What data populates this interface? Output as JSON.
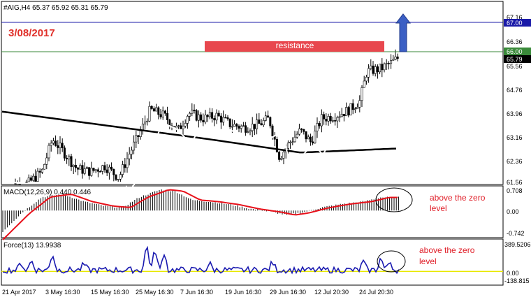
{
  "header": {
    "symbol_info": "#AIG,H4  65.37 65.92 65.31 65.79",
    "date": "3/08/2017"
  },
  "main_chart": {
    "annotation": "resistance",
    "price_axis": [
      "67.16",
      "66.36",
      "65.56",
      "64.76",
      "63.96",
      "63.16",
      "62.36",
      "61.56"
    ],
    "level_labels": {
      "blue": "67.00",
      "green": "66.00",
      "current": "65.79"
    },
    "resistance_price": 66.0,
    "target_price": 67.0,
    "current_price": 65.79
  },
  "macd_panel": {
    "label": "MACD(12,26,9) 0.440 0.446",
    "axis": [
      "0.708",
      "0.00",
      "-0.742"
    ],
    "note": "above the zero\nlevel"
  },
  "force_panel": {
    "label": "Force(13) 13.9938",
    "axis": [
      "389.5206",
      "0.00",
      "-138.815"
    ],
    "note": "above the zero\nlevel"
  },
  "time_axis": [
    "21 Apr 2017",
    "3 May 16:30",
    "15 May 16:30",
    "25 May 16:30",
    "7 Jun 16:30",
    "19 Jun 16:30",
    "29 Jun 16:30",
    "12 Jul 20:30",
    "24 Jul 20:30"
  ],
  "colors": {
    "resistance_box": "#e8474e",
    "target_arrow": "#3b5fc4",
    "target_line": "#1a1aa8",
    "resistance_line": "#3a8a3a",
    "date_text": "#e0302a",
    "note_text": "#e0202a",
    "signal_line": "#e8101a",
    "force_line": "#1a1ab0",
    "zero_line": "#e8e800",
    "candles": "#000000"
  }
}
